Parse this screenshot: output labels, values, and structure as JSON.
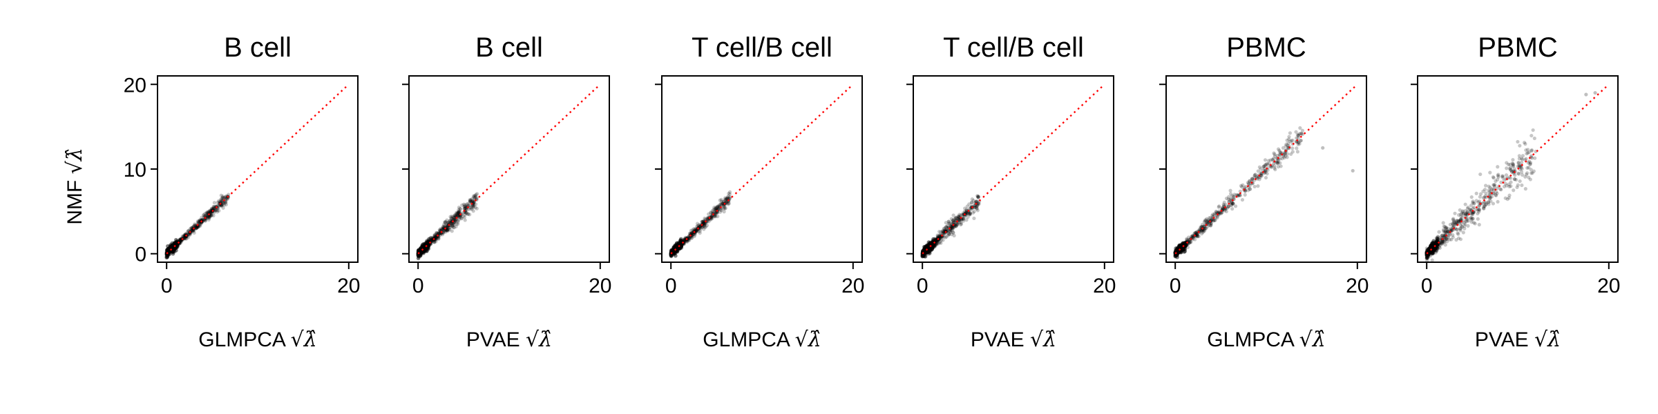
{
  "figure": {
    "ylabel": "NMF",
    "sqrt_lambda_hat": "√λ̂",
    "point_color": "#000000",
    "diagonal_color": "#ff0000"
  },
  "chart_data": [
    {
      "type": "scatter",
      "title": "B cell",
      "xlabel": "GLMPCA",
      "ylabel": "NMF",
      "xlim": [
        -1,
        21
      ],
      "ylim": [
        -1,
        21
      ],
      "xticks": [
        0,
        20
      ],
      "yticks": [
        0,
        10,
        20
      ],
      "x_tick_labels": [
        "0",
        "20"
      ],
      "y_tick_labels": [
        "0",
        "10",
        "20"
      ],
      "spread_x_max": 6.8,
      "noise": 0.25,
      "diagonal": {
        "from": [
          0,
          0
        ],
        "to": [
          19.8,
          19.8
        ],
        "style": "dotted"
      }
    },
    {
      "type": "scatter",
      "title": "B cell",
      "xlabel": "PVAE",
      "ylabel": "NMF",
      "xlim": [
        -1,
        21
      ],
      "ylim": [
        -1,
        21
      ],
      "xticks": [
        0,
        20
      ],
      "yticks": [
        0,
        10,
        20
      ],
      "x_tick_labels": [
        "0",
        "20"
      ],
      "y_tick_labels": [
        "",
        "",
        ""
      ],
      "spread_x_max": 6.5,
      "noise": 0.4,
      "diagonal": {
        "from": [
          0,
          0
        ],
        "to": [
          19.8,
          19.8
        ],
        "style": "dotted"
      }
    },
    {
      "type": "scatter",
      "title": "T cell/B cell",
      "xlabel": "GLMPCA",
      "ylabel": "NMF",
      "xlim": [
        -1,
        21
      ],
      "ylim": [
        -1,
        21
      ],
      "xticks": [
        0,
        20
      ],
      "yticks": [
        0,
        10,
        20
      ],
      "x_tick_labels": [
        "0",
        "20"
      ],
      "y_tick_labels": [
        "",
        "",
        ""
      ],
      "spread_x_max": 6.5,
      "noise": 0.3,
      "diagonal": {
        "from": [
          0,
          0
        ],
        "to": [
          19.8,
          19.8
        ],
        "style": "dotted"
      }
    },
    {
      "type": "scatter",
      "title": "T cell/B cell",
      "xlabel": "PVAE",
      "ylabel": "NMF",
      "xlim": [
        -1,
        21
      ],
      "ylim": [
        -1,
        21
      ],
      "xticks": [
        0,
        20
      ],
      "yticks": [
        0,
        10,
        20
      ],
      "x_tick_labels": [
        "0",
        "20"
      ],
      "y_tick_labels": [
        "",
        "",
        ""
      ],
      "spread_x_max": 6.3,
      "noise": 0.45,
      "diagonal": {
        "from": [
          0,
          0
        ],
        "to": [
          19.8,
          19.8
        ],
        "style": "dotted"
      }
    },
    {
      "type": "scatter",
      "title": "PBMC",
      "xlabel": "GLMPCA",
      "ylabel": "NMF",
      "xlim": [
        -1,
        21
      ],
      "ylim": [
        -1,
        21
      ],
      "xticks": [
        0,
        20
      ],
      "yticks": [
        0,
        10,
        20
      ],
      "x_tick_labels": [
        "0",
        "20"
      ],
      "y_tick_labels": [
        "",
        "",
        ""
      ],
      "spread_x_max": 14.0,
      "noise": 0.5,
      "outliers": [
        [
          19.5,
          9.8
        ],
        [
          16.2,
          12.5
        ],
        [
          13.8,
          14.2
        ]
      ],
      "diagonal": {
        "from": [
          0,
          0
        ],
        "to": [
          19.8,
          19.8
        ],
        "style": "dotted"
      }
    },
    {
      "type": "scatter",
      "title": "PBMC",
      "xlabel": "PVAE",
      "ylabel": "NMF",
      "xlim": [
        -1,
        21
      ],
      "ylim": [
        -1,
        21
      ],
      "xticks": [
        0,
        20
      ],
      "yticks": [
        0,
        10,
        20
      ],
      "x_tick_labels": [
        "0",
        "20"
      ],
      "y_tick_labels": [
        "",
        "",
        ""
      ],
      "spread_x_max": 12.0,
      "noise": 1.1,
      "outliers": [
        [
          17.5,
          18.8
        ],
        [
          18.5,
          19.0
        ]
      ],
      "diagonal": {
        "from": [
          0,
          0
        ],
        "to": [
          19.8,
          19.8
        ],
        "style": "dotted"
      }
    }
  ]
}
